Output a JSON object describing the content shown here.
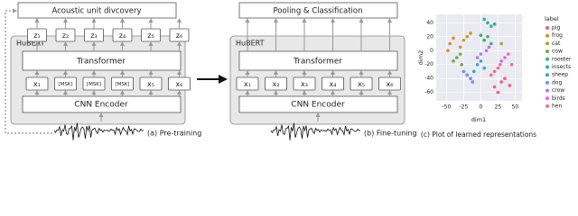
{
  "panel_a": {
    "top_box": "Acoustic unit divcovery",
    "outputs": [
      "z₁",
      "z₂",
      "z₃",
      "z₄",
      "z₅",
      "z₆"
    ],
    "model": "HuBERT",
    "transformer": "Transformer",
    "inputs": [
      "x₁",
      "[MSK]",
      "[MSK]",
      "[MSK]",
      "x₅",
      "x₆"
    ],
    "encoder": "CNN Encoder",
    "caption": "(a) Pre-training"
  },
  "panel_b": {
    "top_box": "Pooling & Classification",
    "model": "HuBERT",
    "transformer": "Transformer",
    "inputs": [
      "x₁",
      "x₂",
      "x₃",
      "x₄",
      "x₅",
      "x₆"
    ],
    "encoder": "CNN Encoder",
    "caption": "(b) Fine-tuning"
  },
  "chart_data": {
    "type": "scatter",
    "caption": "(c) Plot of learned representations",
    "x_label": "dim1",
    "y_label": "dim2",
    "legend_title": "label",
    "xlim": [
      -65,
      60
    ],
    "ylim": [
      -72,
      52
    ],
    "xticks": [
      -50,
      -25,
      0,
      25,
      50
    ],
    "yticks": [
      40,
      20,
      0,
      -20,
      -40,
      -60
    ],
    "series": [
      {
        "name": "pig",
        "color": "#f0607f",
        "x": [
          30,
          35,
          42,
          20,
          25
        ],
        "y": [
          -45,
          -40,
          -50,
          -52,
          -60
        ]
      },
      {
        "name": "frog",
        "color": "#e08a2c",
        "x": [
          -45,
          -40,
          -30,
          -48
        ],
        "y": [
          10,
          18,
          5,
          0
        ]
      },
      {
        "name": "cat",
        "color": "#b8a030",
        "x": [
          -20,
          -15,
          -25,
          30
        ],
        "y": [
          20,
          25,
          15,
          10
        ]
      },
      {
        "name": "cow",
        "color": "#6fae35",
        "x": [
          -35,
          -30,
          -40,
          -28
        ],
        "y": [
          -10,
          -5,
          -15,
          -20
        ]
      },
      {
        "name": "rooster",
        "color": "#35b07a",
        "x": [
          5,
          10,
          15,
          0
        ],
        "y": [
          15,
          20,
          10,
          22
        ]
      },
      {
        "name": "insects",
        "color": "#35aaa5",
        "x": [
          10,
          15,
          5,
          20
        ],
        "y": [
          40,
          35,
          45,
          38
        ]
      },
      {
        "name": "sheep",
        "color": "#3aa6c8",
        "x": [
          -5,
          0,
          5,
          -10
        ],
        "y": [
          -20,
          -15,
          -25,
          -30
        ]
      },
      {
        "name": "dog",
        "color": "#6e8ff0",
        "x": [
          -20,
          -15,
          -25,
          -12
        ],
        "y": [
          -35,
          -40,
          -30,
          -45
        ]
      },
      {
        "name": "crow",
        "color": "#b07af0",
        "x": [
          0,
          8,
          -5,
          12
        ],
        "y": [
          -5,
          0,
          -10,
          5
        ]
      },
      {
        "name": "birds",
        "color": "#e467cf",
        "x": [
          35,
          40,
          30,
          45
        ],
        "y": [
          -10,
          -5,
          -15,
          -20
        ]
      },
      {
        "name": "hen",
        "color": "#f76b9a",
        "x": [
          20,
          25,
          15,
          28
        ],
        "y": [
          -30,
          -25,
          -35,
          -20
        ]
      }
    ]
  }
}
